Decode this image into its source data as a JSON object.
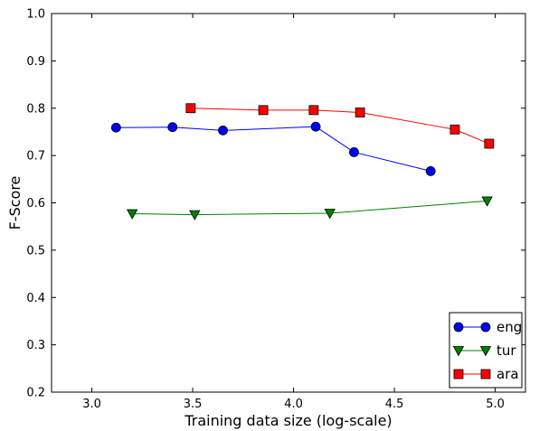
{
  "chart_data": {
    "type": "line",
    "xlabel": "Training data size (log-scale)",
    "ylabel": "F-Score",
    "xlim": [
      2.8,
      5.15
    ],
    "ylim": [
      0.2,
      1.0
    ],
    "x_ticks": [
      3.0,
      3.5,
      4.0,
      4.5,
      5.0
    ],
    "x_tick_labels": [
      "3.0",
      "3.5",
      "4.0",
      "4.5",
      "5.0"
    ],
    "y_ticks": [
      0.2,
      0.3,
      0.4,
      0.5,
      0.6,
      0.7,
      0.8,
      0.9,
      1.0
    ],
    "y_tick_labels": [
      "0.2",
      "0.3",
      "0.4",
      "0.5",
      "0.6",
      "0.7",
      "0.8",
      "0.9",
      "1.0"
    ],
    "grid": false,
    "legend_position": "bottom-right",
    "series": [
      {
        "name": "eng",
        "color": "#0000ff",
        "marker": "circle",
        "x": [
          3.12,
          3.4,
          3.65,
          4.11,
          4.3,
          4.68
        ],
        "y": [
          0.759,
          0.76,
          0.753,
          0.761,
          0.707,
          0.667
        ]
      },
      {
        "name": "tur",
        "color": "#008000",
        "marker": "triangle-down",
        "x": [
          3.2,
          3.51,
          4.18,
          4.96
        ],
        "y": [
          0.577,
          0.575,
          0.578,
          0.604
        ]
      },
      {
        "name": "ara",
        "color": "#ff0000",
        "marker": "square",
        "x": [
          3.49,
          3.85,
          4.1,
          4.33,
          4.8,
          4.97
        ],
        "y": [
          0.8,
          0.796,
          0.796,
          0.791,
          0.755,
          0.725
        ]
      }
    ]
  }
}
